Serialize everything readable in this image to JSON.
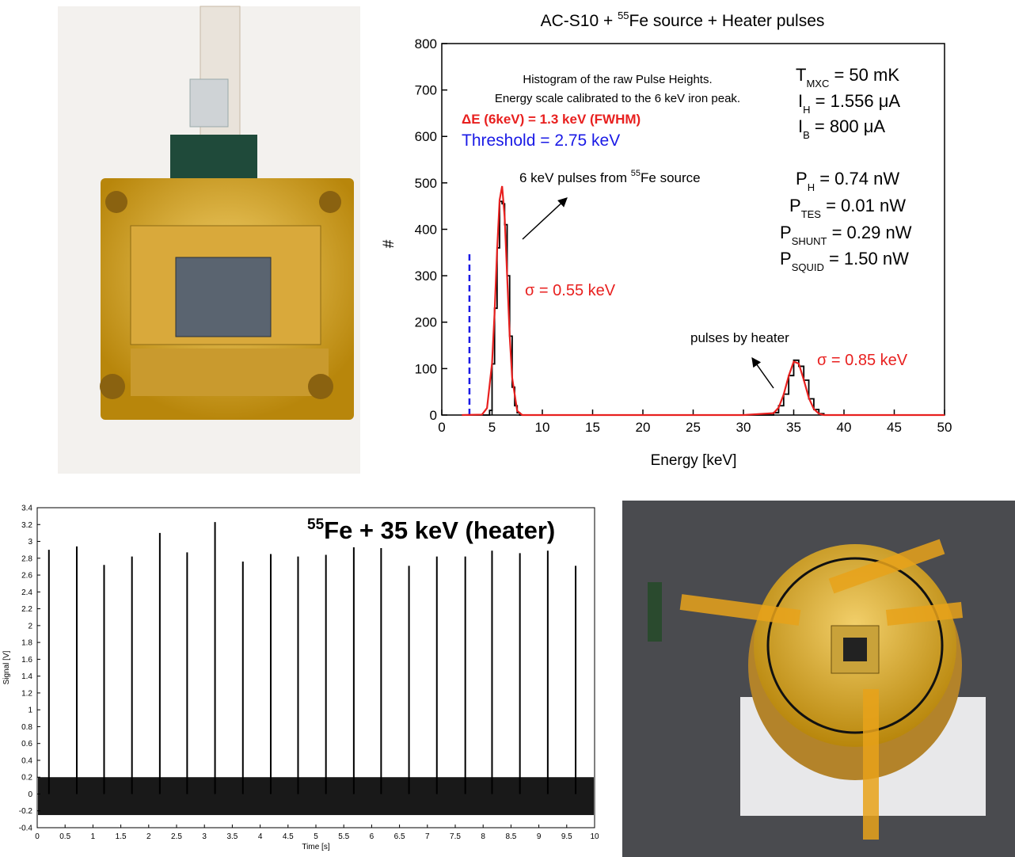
{
  "chart_data": [
    {
      "type": "line",
      "title": {
        "before": "AC-S10 + ",
        "sup": "55",
        "after": "Fe source + Heater pulses"
      },
      "xlabel": "Energy [keV]",
      "ylabel": "#",
      "xlim": [
        0,
        50
      ],
      "xticks": [
        0,
        5,
        10,
        15,
        20,
        25,
        30,
        35,
        40,
        45,
        50
      ],
      "ylim": [
        0,
        800
      ],
      "yticks": [
        0,
        100,
        200,
        300,
        400,
        500,
        600,
        700,
        800
      ],
      "threshold": 2.75,
      "series": [
        {
          "name": "histogram",
          "color": "#000000",
          "step": true,
          "x": [
            2,
            4.75,
            5,
            5.25,
            5.5,
            5.75,
            6,
            6.25,
            6.5,
            6.75,
            7,
            7.25,
            7.5,
            7.75,
            33,
            33.5,
            34,
            34.5,
            35,
            35.5,
            36,
            36.5,
            37,
            37.5,
            38,
            50
          ],
          "values": [
            0,
            10,
            110,
            230,
            360,
            460,
            455,
            410,
            300,
            170,
            60,
            20,
            5,
            0,
            5,
            20,
            45,
            85,
            118,
            105,
            75,
            35,
            12,
            3,
            0,
            0
          ]
        },
        {
          "name": "fit",
          "color": "#e8201f",
          "step": false,
          "x": [
            2,
            4,
            4.5,
            5,
            5.25,
            5.5,
            5.75,
            6,
            6.25,
            6.5,
            6.75,
            7,
            7.5,
            8,
            30,
            33,
            33.5,
            34,
            34.5,
            35,
            35.5,
            36,
            36.5,
            37,
            37.5,
            38,
            50
          ],
          "values": [
            0,
            1,
            15,
            112,
            220,
            354,
            463,
            493,
            427,
            300,
            172,
            80,
            9,
            0,
            0,
            4,
            16,
            44,
            84,
            115,
            111,
            76,
            37,
            13,
            3,
            0,
            0
          ]
        }
      ],
      "annotations": {
        "histogram_note": "Histogram of the raw Pulse Heights.",
        "calibration_note": "Energy scale calibrated to the 6 keV iron peak.",
        "resolution": "ΔE (6keV) = 1.3 keV (FWHM)",
        "threshold_label": "Threshold = 2.75 keV",
        "source_pulses": {
          "before": "6 keV pulses from ",
          "sup": "55",
          "after": "Fe source"
        },
        "sigma_source": "σ = 0.55 keV",
        "heater_pulses": "pulses by heater",
        "sigma_heater": "σ = 0.85 keV"
      },
      "params": [
        {
          "symbol": "T",
          "sub": "MXC",
          "value": " = 50 mK"
        },
        {
          "symbol": "I",
          "sub": "H",
          "value": " = 1.556 μA"
        },
        {
          "symbol": "I",
          "sub": "B",
          "value": " = 800 μA"
        },
        {
          "symbol": "P",
          "sub": "H",
          "value": " = 0.74 nW"
        },
        {
          "symbol": "P",
          "sub": "TES",
          "value": " = 0.01 nW"
        },
        {
          "symbol": "P",
          "sub": "SHUNT",
          "value": " = 0.29 nW"
        },
        {
          "symbol": "P",
          "sub": "SQUID",
          "value": " = 1.50 nW"
        }
      ]
    },
    {
      "type": "stem",
      "xlabel": "Time [s]",
      "ylabel": "Signal [V]",
      "annotation": {
        "sup": "55",
        "text": "Fe + 35 keV (heater)"
      },
      "xlim": [
        0,
        10
      ],
      "xticks": [
        0,
        0.5,
        1,
        1.5,
        2,
        2.5,
        3,
        3.5,
        4,
        4.5,
        5,
        5.5,
        6,
        6.5,
        7,
        7.5,
        8,
        8.5,
        9,
        9.5,
        10
      ],
      "ylim": [
        -0.4,
        3.4
      ],
      "yticks": [
        -0.4,
        -0.2,
        0,
        0.2,
        0.4,
        0.6,
        0.8,
        1,
        1.2,
        1.4,
        1.6,
        1.8,
        2,
        2.2,
        2.4,
        2.6,
        2.8,
        3,
        3.2,
        3.4
      ],
      "noise_band": [
        -0.25,
        0.2
      ],
      "color": "#000000",
      "x": [
        0.21,
        0.71,
        1.2,
        1.7,
        2.2,
        2.69,
        3.19,
        3.69,
        4.19,
        4.68,
        5.18,
        5.68,
        6.17,
        6.67,
        7.17,
        7.68,
        8.16,
        8.66,
        9.16,
        9.66
      ],
      "values": [
        2.9,
        2.94,
        2.72,
        2.82,
        3.1,
        2.87,
        3.23,
        2.76,
        2.85,
        2.82,
        2.84,
        2.93,
        2.92,
        2.71,
        2.82,
        2.82,
        2.89,
        2.86,
        2.89,
        2.71
      ]
    }
  ]
}
